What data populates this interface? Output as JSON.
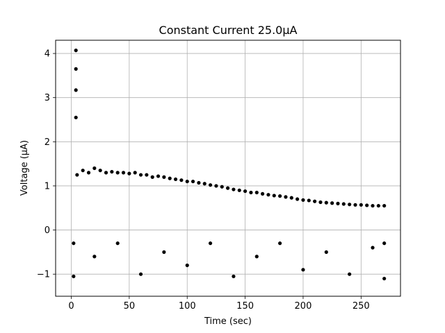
{
  "chart_data": {
    "type": "scatter",
    "title": "Constant Current 25.0μA",
    "xlabel": "Time (sec)",
    "ylabel": "Voltage (μA)",
    "xlim": [
      -13.5,
      284
    ],
    "ylim": [
      -1.5,
      4.3
    ],
    "xticks": [
      0,
      50,
      100,
      150,
      200,
      250
    ],
    "yticks": [
      -1,
      0,
      1,
      2,
      3,
      4
    ],
    "xtick_labels": [
      "0",
      "50",
      "100",
      "150",
      "200",
      "250"
    ],
    "ytick_labels": [
      "−1",
      "0",
      "1",
      "2",
      "3",
      "4"
    ],
    "grid": true,
    "marker_color": "#000000",
    "series": [
      {
        "points": [
          [
            4,
            4.07
          ],
          [
            4,
            3.65
          ],
          [
            4,
            3.17
          ],
          [
            4,
            2.55
          ],
          [
            5,
            1.25
          ],
          [
            10,
            1.35
          ],
          [
            15,
            1.3
          ],
          [
            20,
            1.4
          ],
          [
            25,
            1.35
          ],
          [
            30,
            1.3
          ],
          [
            35,
            1.32
          ],
          [
            40,
            1.3
          ],
          [
            45,
            1.3
          ],
          [
            50,
            1.28
          ],
          [
            55,
            1.3
          ],
          [
            60,
            1.25
          ],
          [
            65,
            1.25
          ],
          [
            70,
            1.2
          ],
          [
            75,
            1.22
          ],
          [
            80,
            1.2
          ],
          [
            85,
            1.17
          ],
          [
            90,
            1.15
          ],
          [
            95,
            1.13
          ],
          [
            100,
            1.1
          ],
          [
            105,
            1.1
          ],
          [
            110,
            1.07
          ],
          [
            115,
            1.05
          ],
          [
            120,
            1.02
          ],
          [
            125,
            1.0
          ],
          [
            130,
            0.98
          ],
          [
            135,
            0.95
          ],
          [
            140,
            0.92
          ],
          [
            145,
            0.9
          ],
          [
            150,
            0.88
          ],
          [
            155,
            0.85
          ],
          [
            160,
            0.85
          ],
          [
            165,
            0.82
          ],
          [
            170,
            0.8
          ],
          [
            175,
            0.78
          ],
          [
            180,
            0.77
          ],
          [
            185,
            0.75
          ],
          [
            190,
            0.73
          ],
          [
            195,
            0.7
          ],
          [
            200,
            0.68
          ],
          [
            205,
            0.67
          ],
          [
            210,
            0.65
          ],
          [
            215,
            0.63
          ],
          [
            220,
            0.62
          ],
          [
            225,
            0.61
          ],
          [
            230,
            0.6
          ],
          [
            235,
            0.59
          ],
          [
            240,
            0.58
          ],
          [
            245,
            0.57
          ],
          [
            250,
            0.57
          ],
          [
            255,
            0.56
          ],
          [
            260,
            0.55
          ],
          [
            265,
            0.55
          ],
          [
            270,
            0.55
          ],
          [
            2,
            -0.3
          ],
          [
            2,
            -1.05
          ],
          [
            20,
            -0.6
          ],
          [
            40,
            -0.3
          ],
          [
            60,
            -1.0
          ],
          [
            80,
            -0.5
          ],
          [
            100,
            -0.8
          ],
          [
            120,
            -0.3
          ],
          [
            140,
            -1.05
          ],
          [
            160,
            -0.6
          ],
          [
            180,
            -0.3
          ],
          [
            200,
            -0.9
          ],
          [
            220,
            -0.5
          ],
          [
            240,
            -1.0
          ],
          [
            260,
            -0.4
          ],
          [
            270,
            -0.3
          ],
          [
            270,
            -1.1
          ]
        ]
      }
    ]
  }
}
